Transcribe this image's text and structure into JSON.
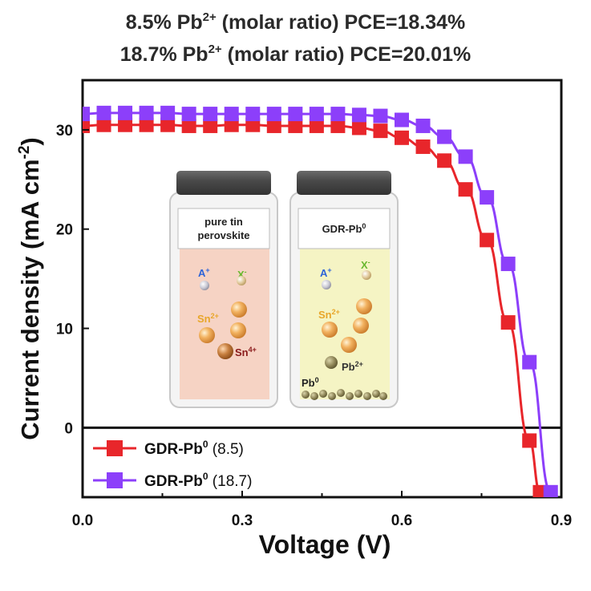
{
  "header": {
    "line1": {
      "lead": "8.5% Pb",
      "sup": "2+",
      "rest": " (molar ratio) PCE=18.34%"
    },
    "line2": {
      "lead": "18.7% Pb",
      "sup": "2+",
      "rest": " (molar ratio) PCE=20.01%"
    }
  },
  "colors": {
    "series1": "#e8262b",
    "series2": "#8c3ffa",
    "axis": "#111111"
  },
  "inset": {
    "left_vial": {
      "label_line1": "pure tin",
      "label_line2": "perovskite",
      "ions": {
        "cation": "A",
        "cation_sup": "+",
        "anion": "X",
        "anion_sup": "-",
        "tin": "Sn",
        "tin_sup": "2+",
        "tin4": "Sn",
        "tin4_sup": "4+"
      },
      "liquid_color": "#f6d3c4"
    },
    "right_vial": {
      "label": "GDR-Pb",
      "label_sup": "0",
      "ions": {
        "cation": "A",
        "cation_sup": "+",
        "anion": "X",
        "anion_sup": "-",
        "tin": "Sn",
        "tin_sup": "2+",
        "pb": "Pb",
        "pb_sup": "2+",
        "pb0": "Pb",
        "pb0_sup": "0"
      },
      "liquid_color": "#f5f4c4"
    }
  },
  "chart_data": {
    "type": "line",
    "title": "",
    "xlabel": "Voltage (V)",
    "ylabel": "Current density (mA cm",
    "ylabel_sup": "-2",
    "ylabel_close": ")",
    "xlim": [
      0.0,
      0.9
    ],
    "ylim": [
      -7,
      35
    ],
    "xticks": [
      "0.0",
      "0.3",
      "0.6",
      "0.9"
    ],
    "xtick_values": [
      0.0,
      0.3,
      0.6,
      0.9
    ],
    "yticks": [
      "0",
      "10",
      "20",
      "30"
    ],
    "ytick_values": [
      0,
      10,
      20,
      30
    ],
    "zero_line": true,
    "grid": false,
    "legend_position": "bottom-left",
    "series": [
      {
        "name": "GDR-Pb",
        "name_sup": "0",
        "name_rest": " (8.5)",
        "color": "#e8262b",
        "x": [
          0.0,
          0.04,
          0.08,
          0.12,
          0.16,
          0.2,
          0.24,
          0.28,
          0.32,
          0.36,
          0.4,
          0.44,
          0.48,
          0.52,
          0.56,
          0.6,
          0.64,
          0.68,
          0.72,
          0.76,
          0.8,
          0.84,
          0.86
        ],
        "y": [
          30.4,
          30.5,
          30.5,
          30.5,
          30.5,
          30.4,
          30.4,
          30.5,
          30.5,
          30.4,
          30.4,
          30.4,
          30.4,
          30.2,
          29.9,
          29.2,
          28.3,
          26.9,
          24.0,
          18.9,
          10.6,
          -1.3,
          -6.5
        ]
      },
      {
        "name": "GDR-Pb",
        "name_sup": "0",
        "name_rest": " (18.7)",
        "color": "#8c3ffa",
        "x": [
          0.0,
          0.04,
          0.08,
          0.12,
          0.16,
          0.2,
          0.24,
          0.28,
          0.32,
          0.36,
          0.4,
          0.44,
          0.48,
          0.52,
          0.56,
          0.6,
          0.64,
          0.68,
          0.72,
          0.76,
          0.8,
          0.84,
          0.88
        ],
        "y": [
          31.6,
          31.7,
          31.7,
          31.7,
          31.7,
          31.6,
          31.6,
          31.6,
          31.6,
          31.6,
          31.6,
          31.6,
          31.6,
          31.5,
          31.4,
          31.0,
          30.4,
          29.3,
          27.3,
          23.2,
          16.5,
          6.6,
          -6.5
        ]
      }
    ]
  }
}
